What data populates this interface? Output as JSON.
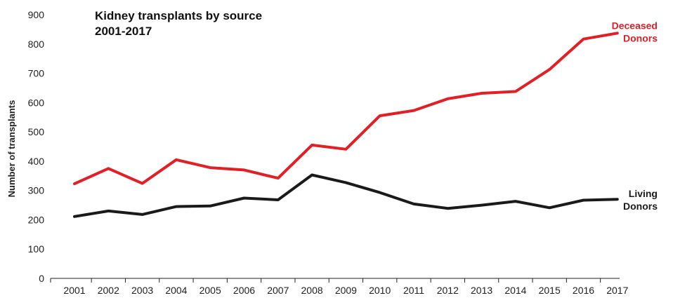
{
  "chart_data": {
    "type": "line",
    "title_lines": [
      "Kidney transplants by source",
      "2001-2017"
    ],
    "xlabel": "",
    "ylabel": "Number of transplants",
    "categories": [
      "2001",
      "2002",
      "2003",
      "2004",
      "2005",
      "2006",
      "2007",
      "2008",
      "2009",
      "2010",
      "2011",
      "2012",
      "2013",
      "2014",
      "2015",
      "2016",
      "2017"
    ],
    "yticks": [
      "0",
      "100",
      "200",
      "300",
      "400",
      "500",
      "600",
      "700",
      "800",
      "900"
    ],
    "ylim": [
      0,
      900
    ],
    "grid": false,
    "series": [
      {
        "name_lines": [
          "Deceased",
          "Donors"
        ],
        "color": "#e31e24",
        "values": [
          323,
          375,
          324,
          405,
          378,
          370,
          342,
          455,
          441,
          555,
          573,
          613,
          632,
          638,
          713,
          817,
          837
        ]
      },
      {
        "name_lines": [
          "Living",
          "Donors"
        ],
        "color": "#1a1a1a",
        "values": [
          211,
          230,
          218,
          245,
          247,
          274,
          268,
          353,
          327,
          293,
          254,
          239,
          250,
          263,
          241,
          267,
          270
        ]
      }
    ]
  }
}
